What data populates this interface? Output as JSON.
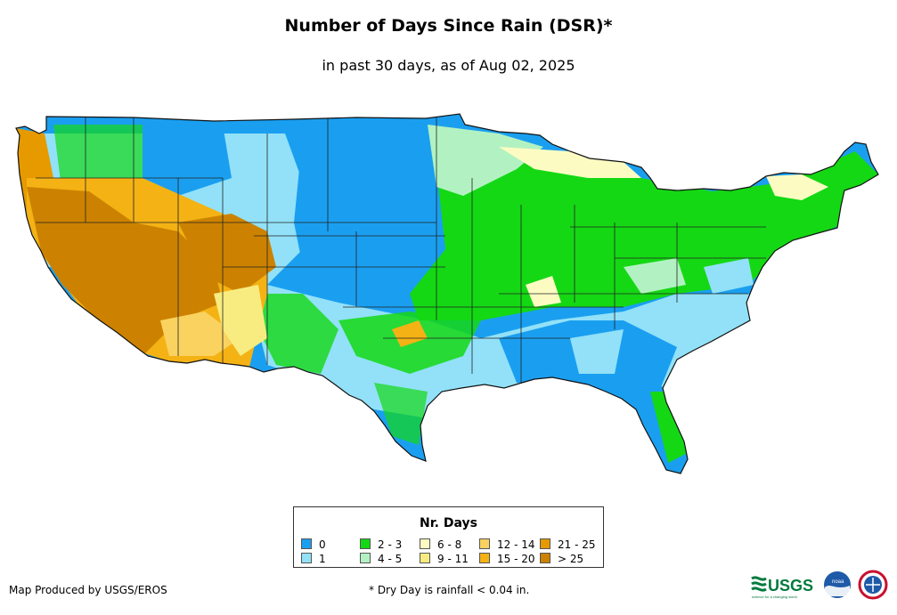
{
  "header": {
    "title": "Number of Days Since Rain (DSR)*",
    "subtitle": "in past 30 days, as of Aug 02, 2025"
  },
  "legend": {
    "title": "Nr. Days",
    "items": [
      {
        "label": "0",
        "color": "#1a9ff0"
      },
      {
        "label": "1",
        "color": "#92e1f8"
      },
      {
        "label": "2 - 3",
        "color": "#14d814"
      },
      {
        "label": "4 - 5",
        "color": "#b2f2c2"
      },
      {
        "label": "6 - 8",
        "color": "#fcfcc2"
      },
      {
        "label": "9 - 11",
        "color": "#f8ec80"
      },
      {
        "label": "12 - 14",
        "color": "#fad260"
      },
      {
        "label": "15 - 20",
        "color": "#f4b214"
      },
      {
        "label": "21 - 25",
        "color": "#e69a00"
      },
      {
        "label": "> 25",
        "color": "#cc8200"
      }
    ]
  },
  "footer": {
    "credit": "Map Produced by USGS/EROS",
    "note": "* Dry Day is rainfall < 0.04 in."
  },
  "logos": {
    "usgs_text": "USGS",
    "usgs_tagline": "science for a changing world",
    "noaa_text": "noaa"
  }
}
